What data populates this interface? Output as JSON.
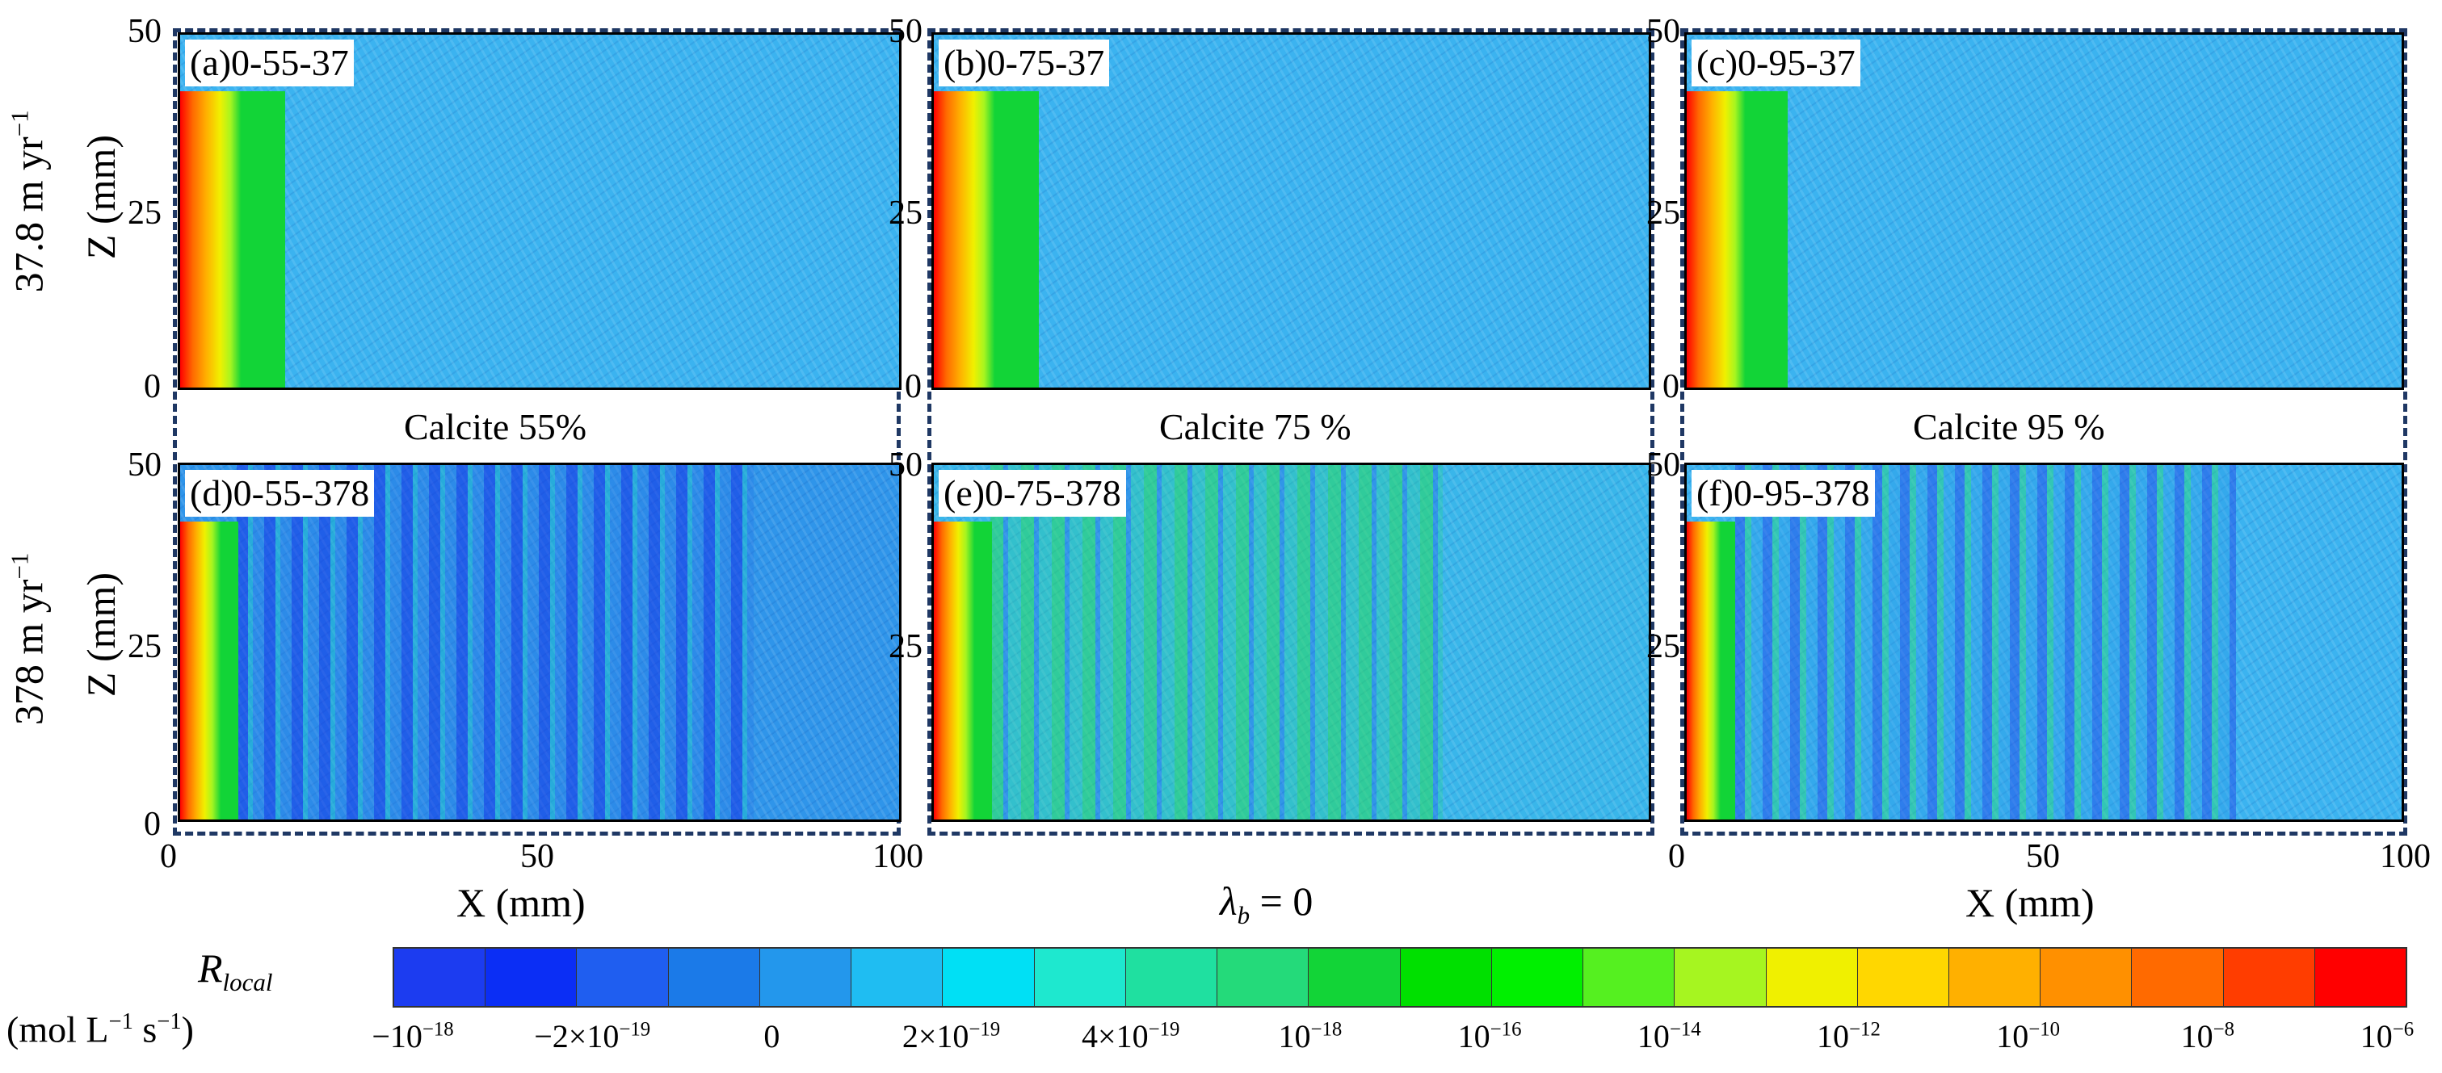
{
  "chart_data": {
    "type": "heatmap",
    "rows": [
      {
        "velocity_label": "37.8 m yr",
        "velocity_exp": "−1"
      },
      {
        "velocity_label": "378 m yr",
        "velocity_exp": "−1"
      }
    ],
    "columns": [
      {
        "calcite_label": "Calcite 55%"
      },
      {
        "calcite_label": "Calcite 75 %"
      },
      {
        "calcite_label": "Calcite 95 %"
      }
    ],
    "panels": [
      {
        "label": "(a)0-55-37",
        "calcite_pct": 55,
        "velocity_m_per_yr": 37.8
      },
      {
        "label": "(b)0-75-37",
        "calcite_pct": 75,
        "velocity_m_per_yr": 37.8
      },
      {
        "label": "(c)0-95-37",
        "calcite_pct": 95,
        "velocity_m_per_yr": 37.8
      },
      {
        "label": "(d)0-55-378",
        "calcite_pct": 55,
        "velocity_m_per_yr": 378
      },
      {
        "label": "(e)0-75-378",
        "calcite_pct": 75,
        "velocity_m_per_yr": 378
      },
      {
        "label": "(f)0-95-378",
        "calcite_pct": 95,
        "velocity_m_per_yr": 378
      }
    ],
    "x_axis": {
      "label": "X (mm)",
      "range": [
        0,
        100
      ],
      "ticks": [
        "0",
        "50",
        "100"
      ]
    },
    "y_axis": {
      "label": "Z (mm)",
      "range": [
        0,
        50
      ],
      "ticks": [
        "0",
        "25",
        "50"
      ]
    },
    "center_annotation": {
      "symbol": "λ",
      "sub": "b",
      "text": " = 0"
    },
    "colorbar": {
      "title": "R",
      "title_sub": "local",
      "units_prefix": "(mol L",
      "units_exp1": "−1",
      "units_mid": " s",
      "units_exp2": "−1",
      "units_suffix": ")",
      "colors": [
        "#1c3cf0",
        "#0b2ef5",
        "#1f5ef0",
        "#1b7ae8",
        "#2397ec",
        "#1fbdf2",
        "#00e0f5",
        "#1ee8cf",
        "#1fe0a0",
        "#24da7a",
        "#12d437",
        "#00e000",
        "#00f000",
        "#55f020",
        "#a6f520",
        "#f0f000",
        "#ffd700",
        "#ffb000",
        "#ff9000",
        "#ff6a00",
        "#ff3d00",
        "#ff0000"
      ],
      "ticks": [
        {
          "base": "−10",
          "exp": "−18"
        },
        {
          "base": "−2×10",
          "exp": "−19"
        },
        {
          "base": "0",
          "exp": ""
        },
        {
          "base": "2×10",
          "exp": "−19"
        },
        {
          "base": "4×10",
          "exp": "−19"
        },
        {
          "base": "10",
          "exp": "−18"
        },
        {
          "base": "10",
          "exp": "−16"
        },
        {
          "base": "10",
          "exp": "−14"
        },
        {
          "base": "10",
          "exp": "−12"
        },
        {
          "base": "10",
          "exp": "−10"
        },
        {
          "base": "10",
          "exp": "−8"
        },
        {
          "base": "10",
          "exp": "−6"
        }
      ]
    }
  }
}
